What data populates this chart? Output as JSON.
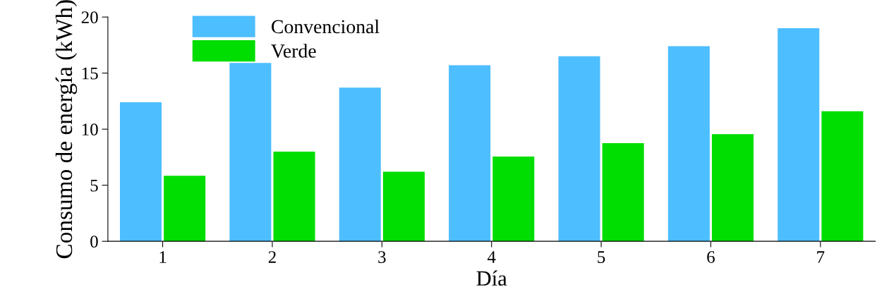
{
  "chart_data": {
    "type": "bar",
    "xlabel": "Día",
    "ylabel": "Consumo de energía (kWh)",
    "categories": [
      "1",
      "2",
      "3",
      "4",
      "5",
      "6",
      "7"
    ],
    "series": [
      {
        "name": "Convencional",
        "color": "#4dbeff",
        "values": [
          12.4,
          15.9,
          13.7,
          15.7,
          16.5,
          17.4,
          19.0
        ]
      },
      {
        "name": "Verde",
        "color": "#00dd00",
        "values": [
          5.85,
          8.0,
          6.2,
          7.55,
          8.75,
          9.55,
          11.6
        ]
      }
    ],
    "ylim": [
      0,
      20
    ],
    "yticks": [
      0,
      5,
      10,
      15,
      20
    ],
    "grid": false,
    "legend": "top left"
  }
}
